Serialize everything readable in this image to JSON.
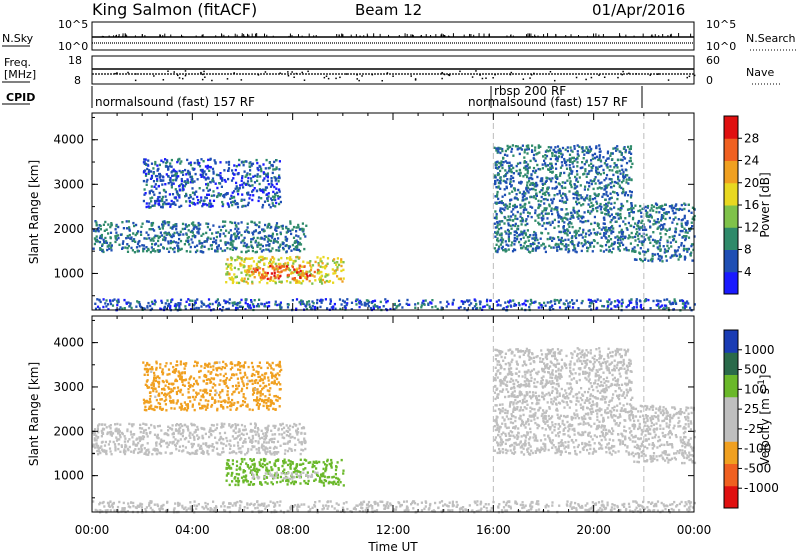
{
  "header": {
    "station": "King Salmon (fitACF)",
    "beam": "Beam 12",
    "date": "01/Apr/2016"
  },
  "params": {
    "nsky_label": "N.Sky",
    "nsky_ticks": [
      "10^5",
      "10^0"
    ],
    "nsearch_label": "N.Search",
    "nsearch_ticks": [
      "10^5",
      "10^0"
    ],
    "freq_label_1": "Freq.",
    "freq_label_2": "[MHz]",
    "freq_ticks": [
      "18",
      "8"
    ],
    "nave_label": "Nave",
    "nave_ticks": [
      "60",
      "0"
    ],
    "cpid_label": "CPID",
    "cpid_segments": [
      {
        "label": "normalsound (fast) 157 RF",
        "start": 0.0,
        "end": 16.0
      },
      {
        "label": "rbsp 200 RF",
        "start": 16.0,
        "end": 16.05
      },
      {
        "label": "normalsound (fast) 157 RF",
        "start": 16.0,
        "end": 22.0
      }
    ]
  },
  "xaxis": {
    "label": "Time UT",
    "ticks": [
      "00:00",
      "04:00",
      "08:00",
      "12:00",
      "16:00",
      "20:00",
      "00:00"
    ],
    "range_hours": [
      0,
      24
    ],
    "dashed_lines_hours": [
      16,
      22
    ]
  },
  "power_panel": {
    "ylabel": "Slant Range [km]",
    "yticks": [
      "1000",
      "2000",
      "3000",
      "4000"
    ],
    "colorbar_label": "Power [dB]",
    "colorbar_ticks": [
      "4",
      "8",
      "12",
      "16",
      "20",
      "24",
      "28"
    ],
    "colors": [
      "#1a1aff",
      "#1f4fb4",
      "#2f8a6a",
      "#7fc24a",
      "#e8d820",
      "#f0a020",
      "#f06020",
      "#e01010"
    ]
  },
  "velocity_panel": {
    "ylabel": "Slant Range [km]",
    "yticks": [
      "1000",
      "2000",
      "3000",
      "4000"
    ],
    "colorbar_label": "Velocity [m s",
    "colorbar_sup": "-1",
    "colorbar_label_end": "]",
    "colorbar_ticks": [
      "1000",
      "500",
      "100",
      "25",
      "-25",
      "-100",
      "-500",
      "-1000"
    ],
    "colors": [
      "#1a3cb4",
      "#2a6a4a",
      "#6ab82a",
      "#bfbfbf",
      "#bfbfbf",
      "#f0a020",
      "#f06020",
      "#e01010"
    ]
  },
  "chart_data": {
    "type": "heatmap",
    "x_unit": "hours UT",
    "y_unit": "km",
    "xlim": [
      0,
      24
    ],
    "ylim": [
      180,
      4600
    ],
    "power_regions": [
      {
        "t0": 0.0,
        "t1": 8.5,
        "r0": 1500,
        "r1": 2200,
        "power_db": 8
      },
      {
        "t0": 5.3,
        "t1": 10.0,
        "r0": 800,
        "r1": 1400,
        "power_db": 18
      },
      {
        "t0": 6.3,
        "t1": 9.0,
        "r0": 900,
        "r1": 1200,
        "power_db": 26
      },
      {
        "t0": 2.0,
        "t1": 7.5,
        "r0": 2500,
        "r1": 3600,
        "power_db": 6
      },
      {
        "t0": 16.0,
        "t1": 21.5,
        "r0": 1500,
        "r1": 3900,
        "power_db": 8
      },
      {
        "t0": 21.5,
        "t1": 24.0,
        "r0": 1300,
        "r1": 2600,
        "power_db": 8
      },
      {
        "t0": 0.0,
        "t1": 24.0,
        "r0": 200,
        "r1": 450,
        "power_db": 6
      }
    ],
    "velocity_regions": [
      {
        "t0": 0.0,
        "t1": 8.5,
        "r0": 1500,
        "r1": 2200,
        "velocity": 0
      },
      {
        "t0": 5.3,
        "t1": 10.0,
        "r0": 800,
        "r1": 1400,
        "velocity": 150
      },
      {
        "t0": 6.3,
        "t1": 9.0,
        "r0": 950,
        "r1": 1100,
        "velocity": 0
      },
      {
        "t0": 2.0,
        "t1": 7.5,
        "r0": 2500,
        "r1": 3600,
        "velocity": -120
      },
      {
        "t0": 16.0,
        "t1": 21.5,
        "r0": 1500,
        "r1": 3900,
        "velocity": 0
      },
      {
        "t0": 21.5,
        "t1": 24.0,
        "r0": 1300,
        "r1": 2600,
        "velocity": 0
      },
      {
        "t0": 0.0,
        "t1": 24.0,
        "r0": 200,
        "r1": 450,
        "velocity": 0
      }
    ]
  }
}
